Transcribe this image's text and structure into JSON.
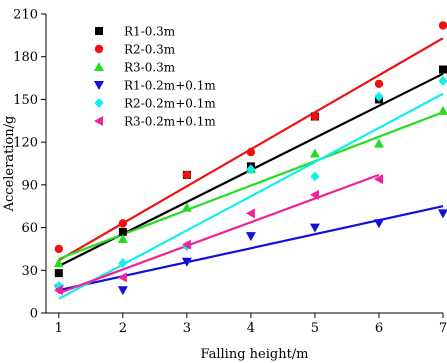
{
  "chart_data": {
    "type": "scatter",
    "xlabel": "Falling height/m",
    "ylabel": "Acceleration/g",
    "xlim": [
      0.8,
      7.0
    ],
    "ylim": [
      0,
      210
    ],
    "xticks": [
      "1",
      "2",
      "3",
      "4",
      "5",
      "6",
      "7"
    ],
    "yticks": [
      "0",
      "30",
      "60",
      "90",
      "120",
      "150",
      "180",
      "210"
    ],
    "legend_position": "top-left",
    "series": [
      {
        "name": "R1-0.3m",
        "marker": "square",
        "color": "#000000",
        "x": [
          1,
          2,
          3,
          4,
          5,
          6,
          7
        ],
        "y": [
          28,
          57,
          97,
          103,
          138,
          150,
          171
        ],
        "fit": {
          "x": [
            1,
            7
          ],
          "y": [
            33,
            168
          ]
        }
      },
      {
        "name": "R2-0.3m",
        "marker": "circle",
        "color": "#ee1111",
        "x": [
          1,
          2,
          3,
          4,
          5,
          6,
          7
        ],
        "y": [
          45,
          63,
          97,
          113,
          138,
          161,
          202
        ],
        "fit": {
          "x": [
            1,
            7
          ],
          "y": [
            37,
            193
          ]
        }
      },
      {
        "name": "R3-0.3m",
        "marker": "triangle-up",
        "color": "#22dd22",
        "x": [
          1,
          2,
          3,
          4,
          5,
          6,
          7
        ],
        "y": [
          35,
          52,
          74,
          101,
          112,
          119,
          142
        ],
        "fit": {
          "x": [
            1,
            7
          ],
          "y": [
            38,
            141
          ]
        }
      },
      {
        "name": "R1-0.2m+0.1m",
        "marker": "triangle-down",
        "color": "#1111dd",
        "x": [
          1,
          2,
          3,
          4,
          5,
          6,
          7
        ],
        "y": [
          17,
          16,
          36,
          54,
          60,
          63,
          70
        ],
        "fit": {
          "x": [
            1,
            7
          ],
          "y": [
            16,
            75
          ]
        }
      },
      {
        "name": "R2-0.2m+0.1m",
        "marker": "diamond",
        "color": "#11eeee",
        "x": [
          1,
          2,
          3,
          4,
          5,
          6,
          7
        ],
        "y": [
          19,
          35,
          47,
          101,
          96,
          152,
          163
        ],
        "fit": {
          "x": [
            1,
            7
          ],
          "y": [
            10,
            154
          ]
        }
      },
      {
        "name": "R3-0.2m+0.1m",
        "marker": "triangle-left",
        "color": "#ee2299",
        "x": [
          1,
          2,
          3,
          4,
          5,
          6
        ],
        "y": [
          16,
          25,
          48,
          70,
          83,
          94
        ],
        "fit": {
          "x": [
            1,
            6
          ],
          "y": [
            14,
            97
          ]
        }
      }
    ]
  }
}
